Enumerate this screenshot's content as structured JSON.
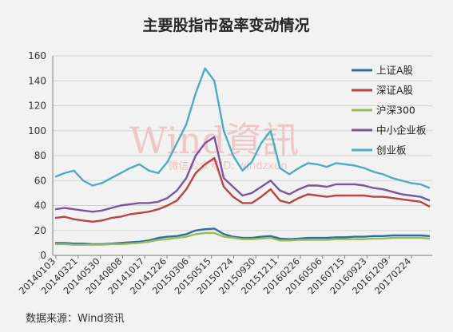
{
  "chart_data": {
    "type": "line",
    "title": "主要股指市盈率变动情况",
    "source": "数据来源：Wind资讯",
    "watermark": {
      "main": "Wind資訊",
      "sub": "微信公众号ID: windzxun"
    },
    "ylim": [
      0,
      160
    ],
    "yticks": [
      "0",
      "20",
      "40",
      "60",
      "80",
      "100",
      "120",
      "140",
      "160"
    ],
    "x_tick_labels": [
      "20140103",
      "20140321",
      "20140530",
      "20140808",
      "20141017",
      "20141226",
      "20150306",
      "20150515",
      "20150724",
      "20150930",
      "20151211",
      "20160226",
      "20160506",
      "20160715",
      "20160923",
      "20161209",
      "20170224"
    ],
    "legend_position": "right",
    "x": [
      "2014-01",
      "2014-02",
      "2014-03",
      "2014-04",
      "2014-05",
      "2014-06",
      "2014-07",
      "2014-08",
      "2014-09",
      "2014-10",
      "2014-11",
      "2014-12",
      "2015-01",
      "2015-02",
      "2015-03",
      "2015-04",
      "2015-05",
      "2015-06",
      "2015-07",
      "2015-08",
      "2015-09",
      "2015-10",
      "2015-11",
      "2015-12",
      "2016-01",
      "2016-02",
      "2016-03",
      "2016-04",
      "2016-05",
      "2016-06",
      "2016-07",
      "2016-08",
      "2016-09",
      "2016-10",
      "2016-11",
      "2016-12",
      "2017-01",
      "2017-02",
      "2017-03",
      "2017-04",
      "2017-05"
    ],
    "series": [
      {
        "name": "上证A股",
        "color": "#2e6da4",
        "values": [
          10,
          10,
          9.5,
          9.5,
          9,
          9,
          9.5,
          10,
          10.5,
          11,
          12,
          14,
          15,
          15.5,
          17,
          20,
          21,
          21.5,
          17,
          15,
          14,
          14,
          15,
          15.5,
          13.5,
          13,
          13.5,
          14,
          14,
          14,
          14.5,
          14.5,
          15,
          15,
          15.5,
          15.5,
          16,
          16,
          16,
          16,
          15.5
        ]
      },
      {
        "name": "深证A股",
        "color": "#b84545",
        "values": [
          30,
          31,
          29,
          28,
          27,
          28,
          30,
          31,
          33,
          34,
          35,
          37,
          40,
          44,
          53,
          66,
          73,
          78,
          55,
          47,
          42,
          42,
          47,
          53,
          44,
          42,
          46,
          49,
          48,
          47,
          48,
          48,
          48,
          48,
          47,
          47,
          46,
          45,
          44,
          43,
          39
        ]
      },
      {
        "name": "沪深300",
        "color": "#9bbb59",
        "values": [
          9,
          9,
          8.5,
          8.5,
          8.5,
          8.5,
          9,
          9,
          9.5,
          10,
          11,
          12.5,
          13,
          14,
          15,
          17,
          18,
          18,
          15,
          14,
          13,
          13,
          13.5,
          14,
          12,
          12,
          12.5,
          12.5,
          12.5,
          12.5,
          13,
          13,
          13,
          13,
          13.5,
          13.5,
          14,
          14,
          14,
          14,
          13.5
        ]
      },
      {
        "name": "中小企业板",
        "color": "#7b569f",
        "values": [
          37,
          38,
          37,
          36,
          35,
          36,
          38,
          40,
          41,
          42,
          42,
          43,
          46,
          52,
          62,
          80,
          90,
          95,
          62,
          55,
          48,
          50,
          55,
          60,
          52,
          49,
          53,
          56,
          56,
          55,
          57,
          57,
          57,
          56,
          54,
          53,
          51,
          49,
          48,
          47,
          44
        ]
      },
      {
        "name": "创业板",
        "color": "#4bacc6",
        "values": [
          63,
          66,
          68,
          60,
          56,
          58,
          62,
          66,
          70,
          73,
          68,
          66,
          75,
          90,
          105,
          130,
          150,
          140,
          100,
          80,
          68,
          75,
          90,
          100,
          70,
          65,
          70,
          74,
          73,
          71,
          74,
          73,
          72,
          70,
          67,
          65,
          62,
          60,
          58,
          57,
          54
        ]
      }
    ]
  }
}
